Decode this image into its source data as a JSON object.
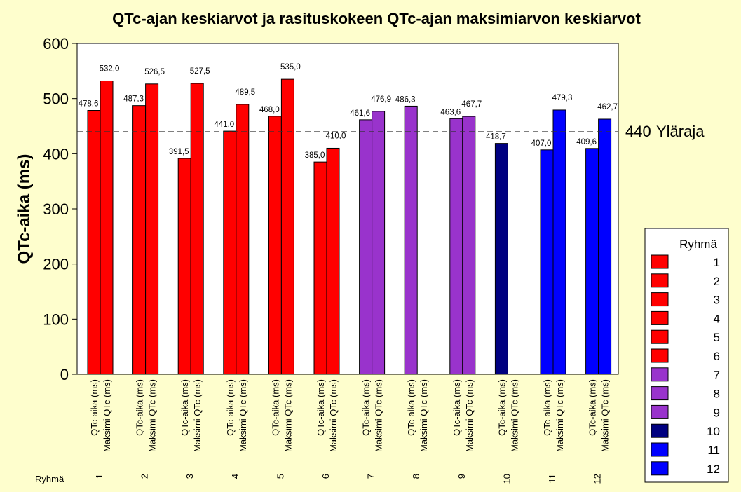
{
  "chart_data": {
    "type": "bar",
    "title": "QTc-ajan keskiarvot ja rasituskokeen QTc-ajan maksimiarvon keskiarvot",
    "ylabel": "QTc-aika (ms)",
    "xlabel": "Ryhmä",
    "ylim": [
      0,
      600
    ],
    "yticks": [
      0,
      100,
      200,
      300,
      400,
      500,
      600
    ],
    "grid": false,
    "bar_categories": [
      "QTc-aika (ms)",
      "Maksimi QTc (ms)"
    ],
    "groups": [
      {
        "name": "1",
        "color": "#ff0000",
        "values": [
          478.6,
          532.0
        ],
        "labels": [
          "478,6",
          "532,0"
        ]
      },
      {
        "name": "2",
        "color": "#ff0000",
        "values": [
          487.3,
          526.5
        ],
        "labels": [
          "487,3",
          "526,5"
        ]
      },
      {
        "name": "3",
        "color": "#ff0000",
        "values": [
          391.5,
          527.5
        ],
        "labels": [
          "391,5",
          "527,5"
        ]
      },
      {
        "name": "4",
        "color": "#ff0000",
        "values": [
          441.0,
          489.5
        ],
        "labels": [
          "441,0",
          "489,5"
        ]
      },
      {
        "name": "5",
        "color": "#ff0000",
        "values": [
          468.0,
          535.0
        ],
        "labels": [
          "468,0",
          "535,0"
        ]
      },
      {
        "name": "6",
        "color": "#ff0000",
        "values": [
          385.0,
          410.0
        ],
        "labels": [
          "385,0",
          "410,0"
        ]
      },
      {
        "name": "7",
        "color": "#9933cc",
        "values": [
          461.6,
          476.9
        ],
        "labels": [
          "461,6",
          "476,9"
        ]
      },
      {
        "name": "8",
        "color": "#9933cc",
        "values": [
          486.3,
          null
        ],
        "labels": [
          "486,3",
          ""
        ]
      },
      {
        "name": "9",
        "color": "#9933cc",
        "values": [
          463.6,
          467.7
        ],
        "labels": [
          "463,6",
          "467,7"
        ]
      },
      {
        "name": "10",
        "color": "#000080",
        "values": [
          418.7,
          null
        ],
        "labels": [
          "418,7",
          ""
        ]
      },
      {
        "name": "11",
        "color": "#0000ff",
        "values": [
          407.0,
          479.3
        ],
        "labels": [
          "407,0",
          "479,3"
        ]
      },
      {
        "name": "12",
        "color": "#0000ff",
        "values": [
          409.6,
          462.7
        ],
        "labels": [
          "409,6",
          "462,7"
        ]
      }
    ],
    "reference_line": {
      "value": 440,
      "value_label": "440",
      "text": "Yläraja",
      "style": "dashed"
    },
    "legend": {
      "title": "Ryhmä",
      "placement": "right",
      "entries": [
        {
          "label": "1",
          "color": "#ff0000"
        },
        {
          "label": "2",
          "color": "#ff0000"
        },
        {
          "label": "3",
          "color": "#ff0000"
        },
        {
          "label": "4",
          "color": "#ff0000"
        },
        {
          "label": "5",
          "color": "#ff0000"
        },
        {
          "label": "6",
          "color": "#ff0000"
        },
        {
          "label": "7",
          "color": "#9933cc"
        },
        {
          "label": "8",
          "color": "#9933cc"
        },
        {
          "label": "9",
          "color": "#9933cc"
        },
        {
          "label": "10",
          "color": "#000080"
        },
        {
          "label": "11",
          "color": "#0000ff"
        },
        {
          "label": "12",
          "color": "#0000ff"
        }
      ]
    },
    "colors": {
      "background": "#fefecd",
      "plot_background": "#ffffff"
    }
  }
}
